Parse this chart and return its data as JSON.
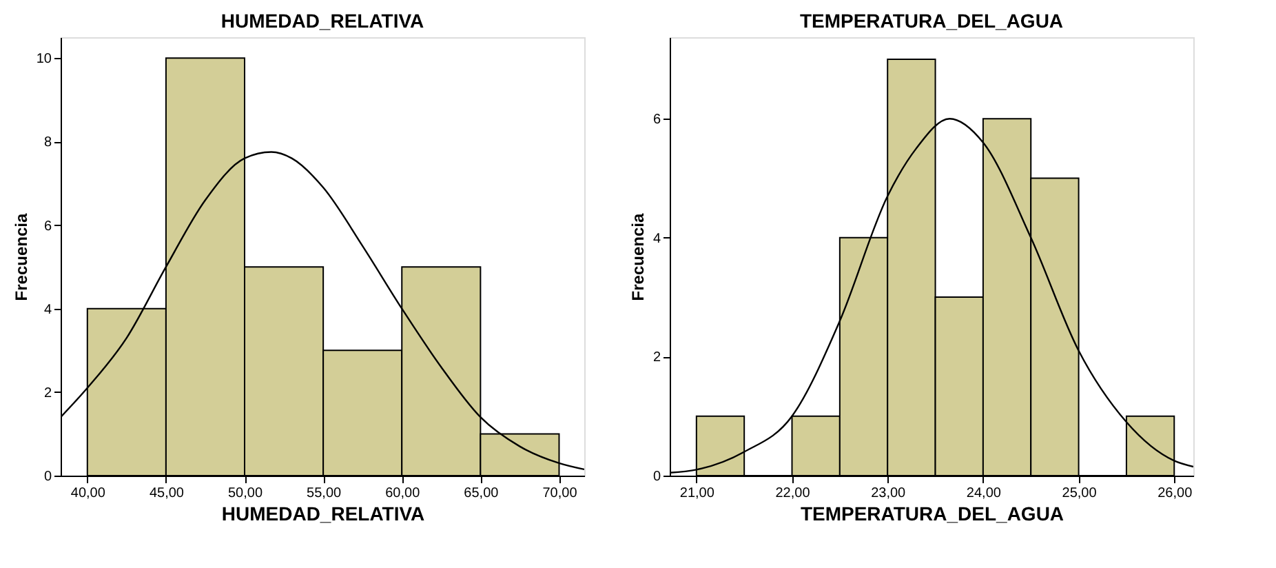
{
  "chart_data": [
    {
      "type": "histogram",
      "title": "HUMEDAD_RELATIVA",
      "xlabel": "HUMEDAD_RELATIVA",
      "ylabel": "Frecuencia",
      "color": "#d3ce97",
      "grid": false,
      "bins": [
        40,
        45,
        50,
        55,
        60,
        65,
        70
      ],
      "values": [
        4,
        10,
        5,
        3,
        5,
        1
      ],
      "xlim": [
        38.3,
        71.6
      ],
      "xticks": [
        {
          "value": 40,
          "label": "40,00"
        },
        {
          "value": 45,
          "label": "45,00"
        },
        {
          "value": 50,
          "label": "50,00"
        },
        {
          "value": 55,
          "label": "55,00"
        },
        {
          "value": 60,
          "label": "60,00"
        },
        {
          "value": 65,
          "label": "65,00"
        },
        {
          "value": 70,
          "label": "70,00"
        }
      ],
      "ylim": [
        0,
        10.5
      ],
      "yticks": [
        0,
        2,
        4,
        6,
        8,
        10
      ],
      "series": [
        {
          "type": "line",
          "color": "#000000",
          "x": [
            38.3,
            40,
            42.5,
            45,
            47.5,
            50,
            51.7,
            53,
            55,
            57.5,
            60,
            62.5,
            65,
            67.5,
            70,
            71.6
          ],
          "values": [
            1.4,
            2.1,
            3.3,
            5.0,
            6.6,
            7.6,
            7.75,
            7.6,
            6.9,
            5.5,
            4.0,
            2.6,
            1.4,
            0.7,
            0.3,
            0.15
          ]
        }
      ]
    },
    {
      "type": "histogram",
      "title": "TEMPERATURA_DEL_AGUA",
      "xlabel": "TEMPERATURA_DEL_AGUA",
      "ylabel": "Frecuencia",
      "color": "#d3ce97",
      "grid": false,
      "bins": [
        21,
        21.5,
        22,
        22.5,
        23,
        23.5,
        24,
        24.5,
        25,
        25.5,
        26
      ],
      "values": [
        1,
        0,
        1,
        4,
        7,
        3,
        6,
        5,
        0,
        1
      ],
      "xlim": [
        20.72,
        26.2
      ],
      "xticks": [
        {
          "value": 21,
          "label": "21,00"
        },
        {
          "value": 22,
          "label": "22,00"
        },
        {
          "value": 23,
          "label": "23,00"
        },
        {
          "value": 24,
          "label": "24,00"
        },
        {
          "value": 25,
          "label": "25,00"
        },
        {
          "value": 26,
          "label": "26,00"
        }
      ],
      "ylim": [
        0,
        7.37
      ],
      "yticks": [
        0,
        2,
        4,
        6
      ],
      "series": [
        {
          "type": "line",
          "color": "#000000",
          "x": [
            20.72,
            21,
            21.5,
            22,
            22.5,
            23,
            23.3,
            23.65,
            24,
            24.5,
            25,
            25.5,
            26,
            26.2
          ],
          "values": [
            0.05,
            0.1,
            0.4,
            1.0,
            2.6,
            4.7,
            5.5,
            6.0,
            5.6,
            4.0,
            2.1,
            0.9,
            0.25,
            0.15
          ]
        }
      ]
    }
  ]
}
